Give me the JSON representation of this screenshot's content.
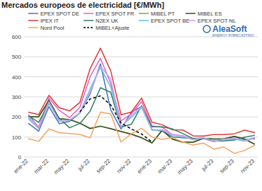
{
  "chart_data": {
    "type": "line",
    "title": "Mercados europeos de electricidad [€/MWh]",
    "annotations": [
      "AleaSoft",
      "ENERGY FORECASTING"
    ],
    "categories": [
      "ene-22",
      null,
      "mar-22",
      null,
      "may-22",
      null,
      "jul-22",
      null,
      "sep-22",
      null,
      "nov-22",
      null,
      "ene-23",
      null,
      "mar-23",
      null,
      "may-23",
      null,
      "jul-23",
      null,
      "sep-23",
      null,
      "nov-23"
    ],
    "ylim": [
      0,
      600
    ],
    "yticks": [
      0,
      100,
      200,
      300,
      400,
      500,
      600
    ],
    "grid": true,
    "legend": "top",
    "series": [
      {
        "name": "EPEX SPOT DE",
        "color": "#4472c4",
        "values": [
          168,
          129,
          252,
          166,
          178,
          219,
          315,
          465,
          235,
          140,
          224,
          252,
          138,
          129,
          101,
          96,
          93,
          95,
          78,
          92,
          101,
          88,
          91
        ]
      },
      {
        "name": "EPEX SPOT FR",
        "color": "#e45fc4",
        "values": [
          211,
          149,
          295,
          233,
          197,
          248,
          401,
          493,
          367,
          180,
          216,
          276,
          155,
          148,
          112,
          106,
          86,
          93,
          77,
          88,
          91,
          84,
          97
        ]
      },
      {
        "name": "MIBEL PT",
        "color": "#70ad47",
        "values": [
          201,
          201,
          283,
          192,
          187,
          169,
          143,
          154,
          142,
          128,
          115,
          96,
          71,
          133,
          89,
          74,
          74,
          93,
          90,
          91,
          103,
          90,
          64
        ]
      },
      {
        "name": "MIBEL ES",
        "color": "#3b4a1e",
        "values": [
          201,
          200,
          283,
          191,
          187,
          169,
          142,
          154,
          141,
          127,
          114,
          96,
          70,
          133,
          89,
          74,
          74,
          93,
          90,
          91,
          103,
          90,
          63
        ]
      },
      {
        "name": "IPEX IT",
        "color": "#e03a3a",
        "values": [
          224,
          212,
          308,
          246,
          230,
          272,
          441,
          543,
          430,
          211,
          224,
          294,
          174,
          161,
          136,
          135,
          106,
          105,
          112,
          112,
          116,
          134,
          122
        ]
      },
      {
        "name": "N2EX UK",
        "color": "#2f7d6b",
        "values": [
          206,
          173,
          268,
          193,
          146,
          167,
          229,
          346,
          323,
          150,
          163,
          256,
          151,
          151,
          140,
          117,
          92,
          93,
          80,
          80,
          85,
          99,
          109
        ]
      },
      {
        "name": "EPEX SPOT BE",
        "color": "#5bc0eb",
        "values": [
          192,
          142,
          272,
          178,
          183,
          220,
          340,
          448,
          349,
          152,
          199,
          247,
          134,
          133,
          109,
          103,
          87,
          95,
          78,
          88,
          90,
          79,
          96
        ]
      },
      {
        "name": "EPEX SPOT NL",
        "color": "#c9a3e3",
        "values": [
          200,
          143,
          276,
          180,
          185,
          220,
          324,
          453,
          391,
          150,
          207,
          251,
          136,
          136,
          112,
          105,
          87,
          97,
          79,
          90,
          94,
          83,
          96
        ]
      },
      {
        "name": "Nord Pool",
        "color": "#f4a460",
        "values": [
          92,
          78,
          140,
          122,
          117,
          113,
          96,
          224,
          215,
          75,
          116,
          144,
          100,
          88,
          97,
          75,
          60,
          70,
          40,
          50,
          18,
          33,
          60
        ]
      },
      {
        "name": "MIBEL+Ajuste",
        "color": "#000000",
        "line_style": "dashed",
        "values": [
          null,
          null,
          null,
          null,
          null,
          225,
          290,
          305,
          260,
          170,
          140,
          115,
          75,
          null,
          null,
          null,
          null,
          null,
          null,
          null,
          null,
          null,
          null
        ]
      }
    ]
  }
}
